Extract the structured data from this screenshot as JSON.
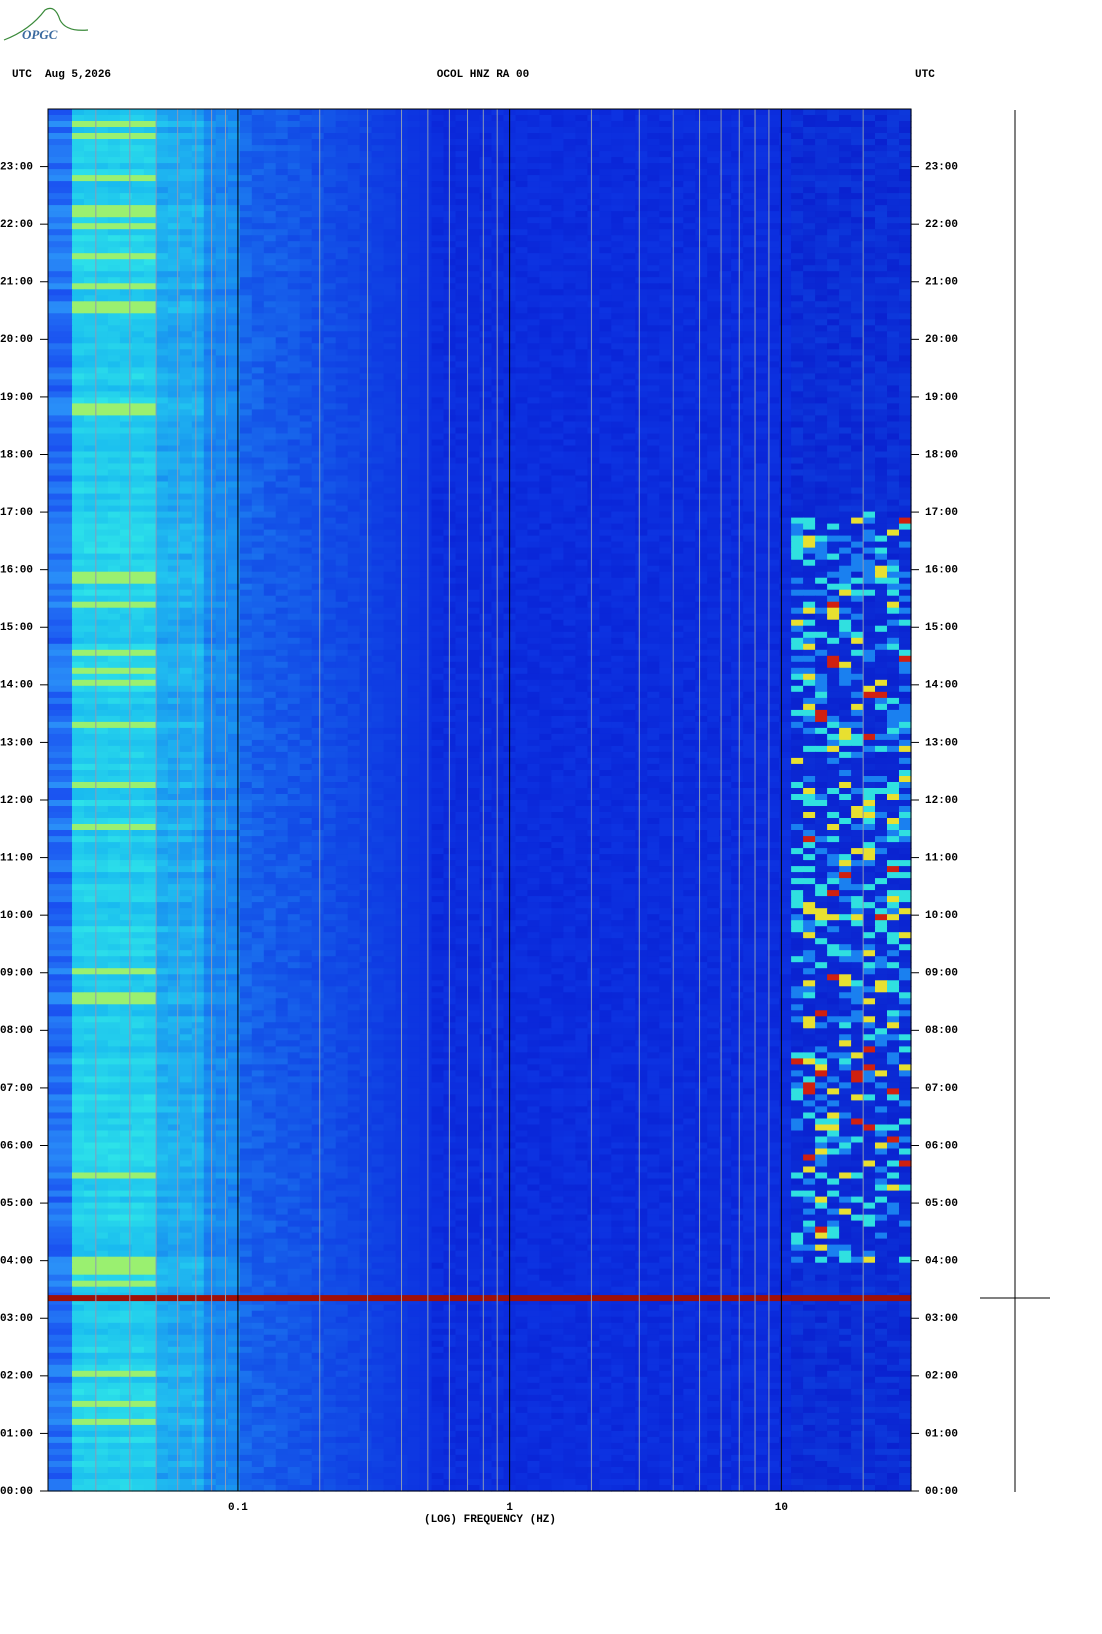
{
  "header": {
    "logo": "OPGC",
    "left": "UTC  Aug 5,2026",
    "title": "OCOL HNZ RA 00",
    "right": "UTC"
  },
  "chart_data": {
    "type": "spectrogram",
    "xlabel": "(LOG) FREQUENCY (HZ)",
    "xscale": "log",
    "xlim": [
      0.02,
      30
    ],
    "xticks": [
      0.1,
      1,
      10
    ],
    "xminorticks": [
      0.03,
      0.04,
      0.05,
      0.06,
      0.07,
      0.08,
      0.09,
      0.2,
      0.3,
      0.4,
      0.5,
      0.6,
      0.7,
      0.8,
      0.9,
      2,
      3,
      4,
      5,
      6,
      7,
      8,
      9,
      20
    ],
    "ylim": [
      0,
      24
    ],
    "yticks": [
      {
        "value": 0,
        "label": "00:00"
      },
      {
        "value": 1,
        "label": "01:00"
      },
      {
        "value": 2,
        "label": "02:00"
      },
      {
        "value": 3,
        "label": "03:00"
      },
      {
        "value": 4,
        "label": "04:00"
      },
      {
        "value": 5,
        "label": "05:00"
      },
      {
        "value": 6,
        "label": "06:00"
      },
      {
        "value": 7,
        "label": "07:00"
      },
      {
        "value": 8,
        "label": "08:00"
      },
      {
        "value": 9,
        "label": "09:00"
      },
      {
        "value": 10,
        "label": "10:00"
      },
      {
        "value": 11,
        "label": "11:00"
      },
      {
        "value": 12,
        "label": "12:00"
      },
      {
        "value": 13,
        "label": "13:00"
      },
      {
        "value": 14,
        "label": "14:00"
      },
      {
        "value": 15,
        "label": "15:00"
      },
      {
        "value": 16,
        "label": "16:00"
      },
      {
        "value": 17,
        "label": "17:00"
      },
      {
        "value": 18,
        "label": "18:00"
      },
      {
        "value": 19,
        "label": "19:00"
      },
      {
        "value": 20,
        "label": "20:00"
      },
      {
        "value": 21,
        "label": "21:00"
      },
      {
        "value": 22,
        "label": "22:00"
      },
      {
        "value": 23,
        "label": "23:00"
      }
    ],
    "events": [
      3.35
    ]
  }
}
